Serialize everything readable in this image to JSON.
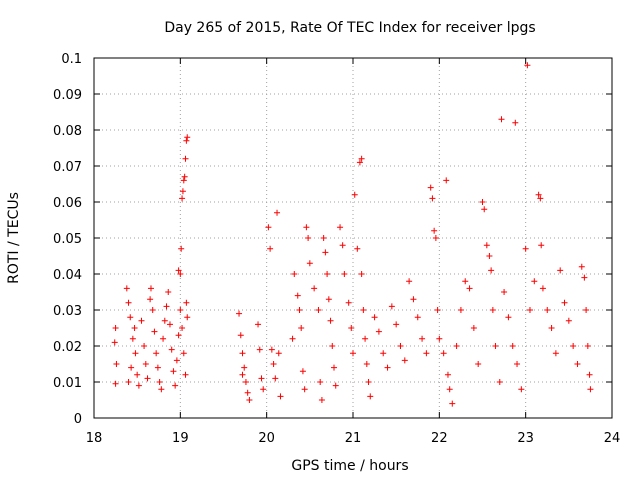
{
  "chart_data": {
    "type": "scatter",
    "title": "Day 265 of 2015, Rate Of TEC Index for receiver lpgs",
    "xlabel": "GPS time / hours",
    "ylabel": "ROTI / TECUs",
    "xlim": [
      18,
      24
    ],
    "ylim": [
      0,
      0.1
    ],
    "x_ticks": [
      "18",
      "19",
      "20",
      "21",
      "22",
      "23",
      "24"
    ],
    "y_ticks": [
      "0",
      "0.01",
      "0.02",
      "0.03",
      "0.04",
      "0.05",
      "0.06",
      "0.07",
      "0.08",
      "0.09",
      "0.1"
    ],
    "grid": true,
    "marker": "+",
    "color": "#ff0000",
    "series": [
      {
        "name": "ROTI",
        "points": [
          [
            18.25,
            0.025
          ],
          [
            18.25,
            0.0095
          ],
          [
            18.26,
            0.015
          ],
          [
            18.24,
            0.021
          ],
          [
            18.38,
            0.036
          ],
          [
            18.4,
            0.032
          ],
          [
            18.42,
            0.028
          ],
          [
            18.45,
            0.022
          ],
          [
            18.48,
            0.018
          ],
          [
            18.5,
            0.012
          ],
          [
            18.52,
            0.009
          ],
          [
            18.4,
            0.01
          ],
          [
            18.43,
            0.014
          ],
          [
            18.47,
            0.025
          ],
          [
            18.55,
            0.027
          ],
          [
            18.58,
            0.02
          ],
          [
            18.6,
            0.015
          ],
          [
            18.62,
            0.011
          ],
          [
            18.65,
            0.033
          ],
          [
            18.66,
            0.036
          ],
          [
            18.68,
            0.03
          ],
          [
            18.7,
            0.024
          ],
          [
            18.72,
            0.018
          ],
          [
            18.74,
            0.014
          ],
          [
            18.76,
            0.01
          ],
          [
            18.78,
            0.008
          ],
          [
            18.8,
            0.022
          ],
          [
            18.82,
            0.027
          ],
          [
            18.84,
            0.031
          ],
          [
            18.86,
            0.035
          ],
          [
            18.88,
            0.026
          ],
          [
            18.9,
            0.019
          ],
          [
            18.92,
            0.013
          ],
          [
            18.94,
            0.009
          ],
          [
            18.96,
            0.016
          ],
          [
            18.98,
            0.023
          ],
          [
            19.0,
            0.03
          ],
          [
            19.02,
            0.025
          ],
          [
            19.04,
            0.018
          ],
          [
            19.06,
            0.012
          ],
          [
            18.98,
            0.041
          ],
          [
            19.0,
            0.04
          ],
          [
            19.01,
            0.047
          ],
          [
            19.02,
            0.061
          ],
          [
            19.03,
            0.063
          ],
          [
            19.04,
            0.066
          ],
          [
            19.05,
            0.067
          ],
          [
            19.06,
            0.072
          ],
          [
            19.07,
            0.077
          ],
          [
            19.08,
            0.078
          ],
          [
            19.07,
            0.032
          ],
          [
            19.08,
            0.028
          ],
          [
            19.68,
            0.029
          ],
          [
            19.7,
            0.023
          ],
          [
            19.72,
            0.018
          ],
          [
            19.74,
            0.014
          ],
          [
            19.76,
            0.01
          ],
          [
            19.78,
            0.007
          ],
          [
            19.8,
            0.005
          ],
          [
            19.72,
            0.012
          ],
          [
            19.9,
            0.026
          ],
          [
            19.92,
            0.019
          ],
          [
            19.94,
            0.011
          ],
          [
            19.96,
            0.008
          ],
          [
            20.02,
            0.053
          ],
          [
            20.04,
            0.047
          ],
          [
            20.06,
            0.019
          ],
          [
            20.08,
            0.015
          ],
          [
            20.1,
            0.011
          ],
          [
            20.12,
            0.057
          ],
          [
            20.14,
            0.018
          ],
          [
            20.16,
            0.006
          ],
          [
            20.3,
            0.022
          ],
          [
            20.32,
            0.04
          ],
          [
            20.36,
            0.034
          ],
          [
            20.38,
            0.03
          ],
          [
            20.4,
            0.025
          ],
          [
            20.42,
            0.013
          ],
          [
            20.44,
            0.008
          ],
          [
            20.46,
            0.053
          ],
          [
            20.48,
            0.05
          ],
          [
            20.5,
            0.043
          ],
          [
            20.55,
            0.036
          ],
          [
            20.6,
            0.03
          ],
          [
            20.62,
            0.01
          ],
          [
            20.64,
            0.005
          ],
          [
            20.66,
            0.05
          ],
          [
            20.68,
            0.046
          ],
          [
            20.7,
            0.04
          ],
          [
            20.72,
            0.033
          ],
          [
            20.74,
            0.027
          ],
          [
            20.76,
            0.02
          ],
          [
            20.78,
            0.014
          ],
          [
            20.8,
            0.009
          ],
          [
            20.85,
            0.053
          ],
          [
            20.88,
            0.048
          ],
          [
            20.9,
            0.04
          ],
          [
            20.95,
            0.032
          ],
          [
            20.98,
            0.025
          ],
          [
            21.0,
            0.018
          ],
          [
            21.02,
            0.062
          ],
          [
            21.05,
            0.047
          ],
          [
            21.08,
            0.071
          ],
          [
            21.1,
            0.072
          ],
          [
            21.1,
            0.04
          ],
          [
            21.12,
            0.03
          ],
          [
            21.14,
            0.022
          ],
          [
            21.16,
            0.015
          ],
          [
            21.18,
            0.01
          ],
          [
            21.2,
            0.006
          ],
          [
            21.25,
            0.028
          ],
          [
            21.3,
            0.024
          ],
          [
            21.35,
            0.018
          ],
          [
            21.4,
            0.014
          ],
          [
            21.45,
            0.031
          ],
          [
            21.5,
            0.026
          ],
          [
            21.55,
            0.02
          ],
          [
            21.6,
            0.016
          ],
          [
            21.65,
            0.038
          ],
          [
            21.7,
            0.033
          ],
          [
            21.75,
            0.028
          ],
          [
            21.8,
            0.022
          ],
          [
            21.85,
            0.018
          ],
          [
            21.9,
            0.064
          ],
          [
            21.92,
            0.061
          ],
          [
            21.94,
            0.052
          ],
          [
            21.96,
            0.05
          ],
          [
            21.98,
            0.03
          ],
          [
            22.0,
            0.022
          ],
          [
            22.05,
            0.018
          ],
          [
            22.08,
            0.066
          ],
          [
            22.1,
            0.012
          ],
          [
            22.12,
            0.008
          ],
          [
            22.15,
            0.004
          ],
          [
            22.2,
            0.02
          ],
          [
            22.25,
            0.03
          ],
          [
            22.3,
            0.038
          ],
          [
            22.35,
            0.036
          ],
          [
            22.4,
            0.025
          ],
          [
            22.45,
            0.015
          ],
          [
            22.5,
            0.06
          ],
          [
            22.52,
            0.058
          ],
          [
            22.55,
            0.048
          ],
          [
            22.58,
            0.045
          ],
          [
            22.6,
            0.041
          ],
          [
            22.62,
            0.03
          ],
          [
            22.65,
            0.02
          ],
          [
            22.7,
            0.01
          ],
          [
            22.72,
            0.083
          ],
          [
            22.75,
            0.035
          ],
          [
            22.8,
            0.028
          ],
          [
            22.85,
            0.02
          ],
          [
            22.88,
            0.082
          ],
          [
            22.9,
            0.015
          ],
          [
            22.95,
            0.008
          ],
          [
            23.0,
            0.047
          ],
          [
            23.02,
            0.098
          ],
          [
            23.05,
            0.03
          ],
          [
            23.1,
            0.038
          ],
          [
            23.15,
            0.062
          ],
          [
            23.17,
            0.061
          ],
          [
            23.18,
            0.048
          ],
          [
            23.2,
            0.036
          ],
          [
            23.25,
            0.03
          ],
          [
            23.3,
            0.025
          ],
          [
            23.35,
            0.018
          ],
          [
            23.4,
            0.041
          ],
          [
            23.45,
            0.032
          ],
          [
            23.5,
            0.027
          ],
          [
            23.55,
            0.02
          ],
          [
            23.6,
            0.015
          ],
          [
            23.65,
            0.042
          ],
          [
            23.68,
            0.039
          ],
          [
            23.7,
            0.03
          ],
          [
            23.72,
            0.02
          ],
          [
            23.74,
            0.012
          ],
          [
            23.75,
            0.008
          ]
        ]
      }
    ]
  }
}
